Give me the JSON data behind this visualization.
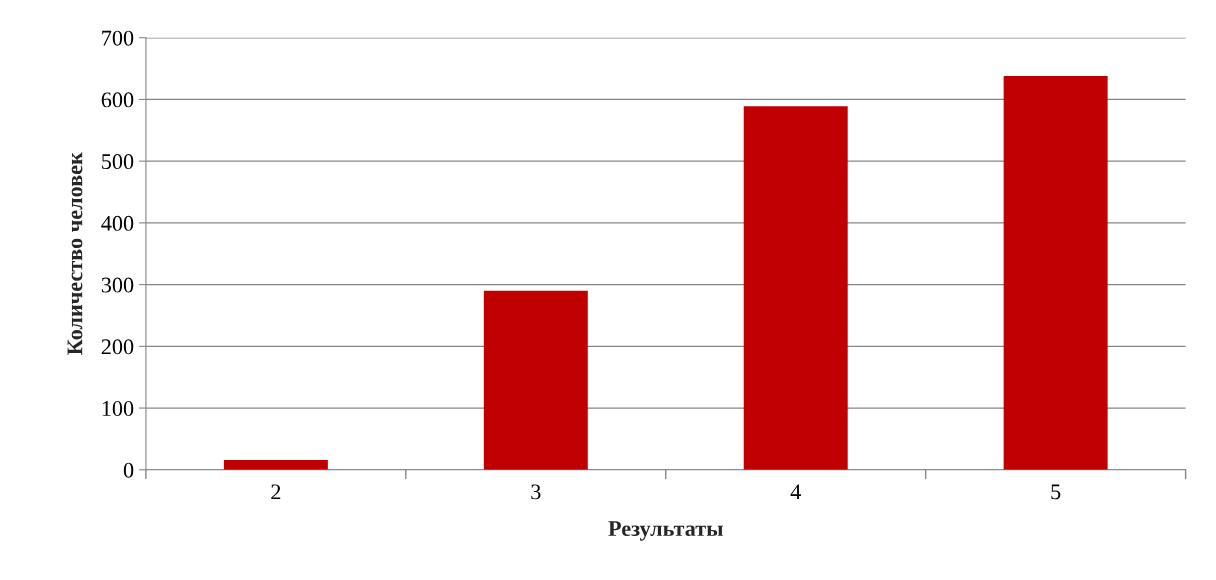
{
  "chart_data": {
    "type": "bar",
    "xlabel": "Результаты",
    "ylabel": "Количество человек",
    "categories": [
      "2",
      "3",
      "4",
      "5"
    ],
    "values": [
      16,
      290,
      589,
      638
    ],
    "color": "#c00000",
    "ylim": [
      0,
      700
    ],
    "yticks": [
      0,
      100,
      200,
      300,
      400,
      500,
      600,
      700
    ],
    "grid": "y"
  }
}
